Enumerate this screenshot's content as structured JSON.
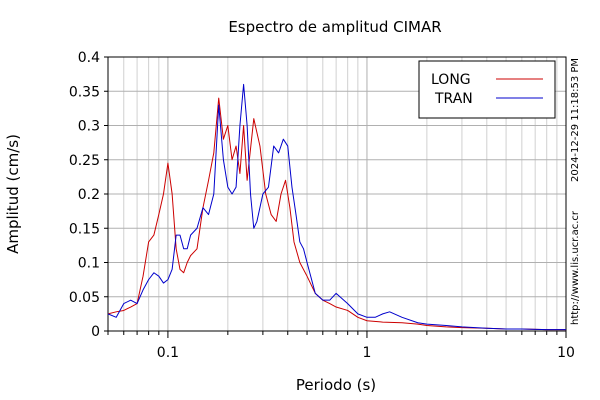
{
  "chart_data": {
    "type": "line",
    "title": "Espectro de amplitud CIMAR",
    "xlabel": "Periodo (s)",
    "ylabel": "Amplitud (cm/s)",
    "xscale": "log",
    "xlim": [
      0.05,
      10
    ],
    "ylim": [
      0,
      0.4
    ],
    "grid": true,
    "legend_placement": "top-right",
    "x_tick_labels": [
      {
        "value": 0.1,
        "label": "0.1"
      },
      {
        "value": 1,
        "label": "1"
      },
      {
        "value": 10,
        "label": "10"
      }
    ],
    "y_tick_labels": [
      {
        "value": 0,
        "label": "0"
      },
      {
        "value": 0.05,
        "label": "0.05"
      },
      {
        "value": 0.1,
        "label": "0.1"
      },
      {
        "value": 0.15,
        "label": "0.15"
      },
      {
        "value": 0.2,
        "label": "0.2"
      },
      {
        "value": 0.25,
        "label": "0.25"
      },
      {
        "value": 0.3,
        "label": "0.3"
      },
      {
        "value": 0.35,
        "label": "0.35"
      },
      {
        "value": 0.4,
        "label": "0.4"
      }
    ],
    "series": [
      {
        "name": "LONG",
        "color": "#cc0000",
        "points": [
          [
            0.05,
            0.025
          ],
          [
            0.055,
            0.028
          ],
          [
            0.06,
            0.03
          ],
          [
            0.065,
            0.035
          ],
          [
            0.07,
            0.04
          ],
          [
            0.075,
            0.08
          ],
          [
            0.08,
            0.13
          ],
          [
            0.085,
            0.14
          ],
          [
            0.09,
            0.17
          ],
          [
            0.095,
            0.2
          ],
          [
            0.1,
            0.245
          ],
          [
            0.105,
            0.2
          ],
          [
            0.11,
            0.12
          ],
          [
            0.115,
            0.09
          ],
          [
            0.12,
            0.085
          ],
          [
            0.125,
            0.1
          ],
          [
            0.13,
            0.11
          ],
          [
            0.14,
            0.12
          ],
          [
            0.15,
            0.18
          ],
          [
            0.16,
            0.22
          ],
          [
            0.17,
            0.26
          ],
          [
            0.18,
            0.34
          ],
          [
            0.19,
            0.28
          ],
          [
            0.2,
            0.3
          ],
          [
            0.21,
            0.25
          ],
          [
            0.22,
            0.27
          ],
          [
            0.23,
            0.23
          ],
          [
            0.24,
            0.3
          ],
          [
            0.25,
            0.22
          ],
          [
            0.27,
            0.31
          ],
          [
            0.29,
            0.27
          ],
          [
            0.31,
            0.2
          ],
          [
            0.33,
            0.17
          ],
          [
            0.35,
            0.16
          ],
          [
            0.37,
            0.2
          ],
          [
            0.39,
            0.22
          ],
          [
            0.41,
            0.18
          ],
          [
            0.43,
            0.13
          ],
          [
            0.46,
            0.1
          ],
          [
            0.5,
            0.08
          ],
          [
            0.55,
            0.055
          ],
          [
            0.6,
            0.045
          ],
          [
            0.65,
            0.04
          ],
          [
            0.7,
            0.035
          ],
          [
            0.8,
            0.03
          ],
          [
            0.9,
            0.02
          ],
          [
            1.0,
            0.015
          ],
          [
            1.2,
            0.013
          ],
          [
            1.5,
            0.012
          ],
          [
            1.8,
            0.01
          ],
          [
            2,
            0.008
          ],
          [
            2.5,
            0.006
          ],
          [
            3,
            0.005
          ],
          [
            4,
            0.004
          ],
          [
            5,
            0.003
          ],
          [
            6,
            0.003
          ],
          [
            8,
            0.002
          ],
          [
            10,
            0.002
          ]
        ]
      },
      {
        "name": "TRAN",
        "color": "#0000cc",
        "points": [
          [
            0.05,
            0.025
          ],
          [
            0.055,
            0.02
          ],
          [
            0.06,
            0.04
          ],
          [
            0.065,
            0.045
          ],
          [
            0.07,
            0.04
          ],
          [
            0.075,
            0.06
          ],
          [
            0.08,
            0.075
          ],
          [
            0.085,
            0.085
          ],
          [
            0.09,
            0.08
          ],
          [
            0.095,
            0.07
          ],
          [
            0.1,
            0.075
          ],
          [
            0.105,
            0.09
          ],
          [
            0.11,
            0.14
          ],
          [
            0.115,
            0.14
          ],
          [
            0.12,
            0.12
          ],
          [
            0.125,
            0.12
          ],
          [
            0.13,
            0.14
          ],
          [
            0.14,
            0.15
          ],
          [
            0.15,
            0.18
          ],
          [
            0.16,
            0.17
          ],
          [
            0.17,
            0.2
          ],
          [
            0.18,
            0.33
          ],
          [
            0.19,
            0.25
          ],
          [
            0.2,
            0.21
          ],
          [
            0.21,
            0.2
          ],
          [
            0.22,
            0.21
          ],
          [
            0.23,
            0.3
          ],
          [
            0.24,
            0.36
          ],
          [
            0.25,
            0.3
          ],
          [
            0.26,
            0.2
          ],
          [
            0.27,
            0.15
          ],
          [
            0.28,
            0.16
          ],
          [
            0.3,
            0.2
          ],
          [
            0.32,
            0.21
          ],
          [
            0.34,
            0.27
          ],
          [
            0.36,
            0.26
          ],
          [
            0.38,
            0.28
          ],
          [
            0.4,
            0.27
          ],
          [
            0.42,
            0.21
          ],
          [
            0.44,
            0.17
          ],
          [
            0.46,
            0.13
          ],
          [
            0.48,
            0.12
          ],
          [
            0.5,
            0.1
          ],
          [
            0.55,
            0.055
          ],
          [
            0.6,
            0.045
          ],
          [
            0.65,
            0.045
          ],
          [
            0.7,
            0.055
          ],
          [
            0.8,
            0.04
          ],
          [
            0.9,
            0.025
          ],
          [
            1.0,
            0.02
          ],
          [
            1.1,
            0.02
          ],
          [
            1.2,
            0.025
          ],
          [
            1.3,
            0.028
          ],
          [
            1.5,
            0.02
          ],
          [
            1.8,
            0.012
          ],
          [
            2,
            0.01
          ],
          [
            2.5,
            0.008
          ],
          [
            3,
            0.006
          ],
          [
            4,
            0.004
          ],
          [
            5,
            0.003
          ],
          [
            6,
            0.003
          ],
          [
            8,
            0.002
          ],
          [
            10,
            0.002
          ]
        ]
      }
    ]
  },
  "side_labels": {
    "timestamp": "2024-12-29 11:18:53 PM",
    "url": "http://www.lis.ucr.ac.cr"
  }
}
